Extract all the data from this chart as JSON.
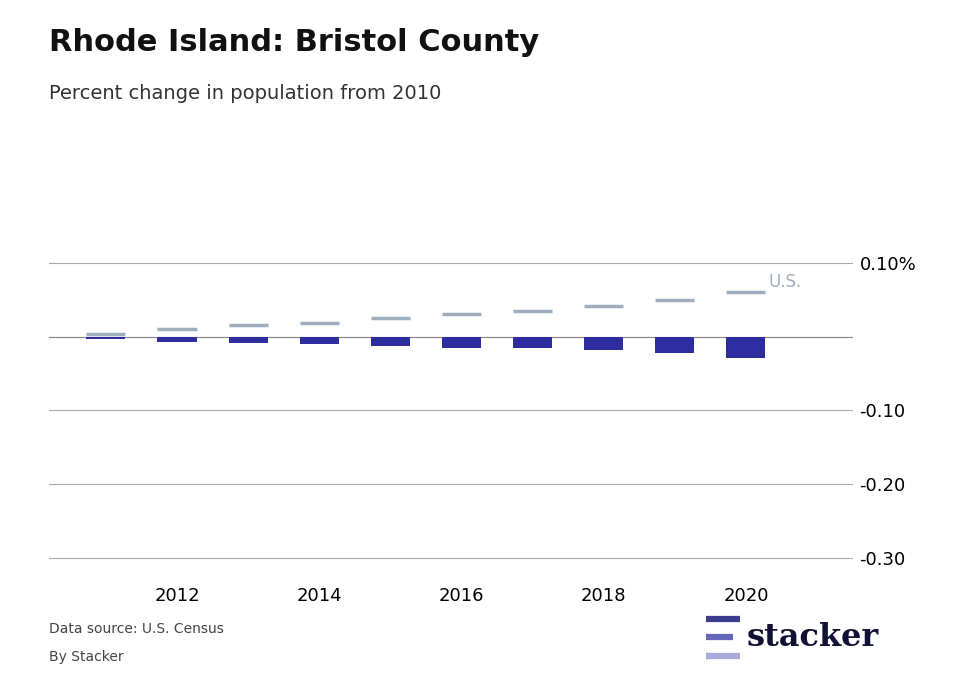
{
  "title": "Rhode Island: Bristol County",
  "subtitle": "Percent change in population from 2010",
  "bar_color": "#2d2d9f",
  "us_line_color": "#a0aec0",
  "us_label_color": "#a0aec0",
  "background_color": "#ffffff",
  "years": [
    2011,
    2012,
    2013,
    2014,
    2015,
    2016,
    2017,
    2018,
    2019,
    2020
  ],
  "county_values": [
    -0.004,
    -0.007,
    -0.009,
    -0.01,
    -0.013,
    -0.015,
    -0.016,
    -0.018,
    -0.022,
    -0.029
  ],
  "us_values": [
    0.004,
    0.01,
    0.015,
    0.019,
    0.025,
    0.03,
    0.035,
    0.042,
    0.05,
    0.06
  ],
  "ylim": [
    -0.33,
    0.115
  ],
  "yticks": [
    -0.3,
    -0.2,
    -0.1,
    0.0,
    0.1
  ],
  "ytick_labels": [
    "-0.30",
    "-0.20",
    "-0.10",
    "",
    "0.10%"
  ],
  "xticks": [
    2012,
    2014,
    2016,
    2018,
    2020
  ],
  "data_source": "Data source: U.S. Census",
  "by_line": "By Stacker",
  "stacker_logo_text": "stacker",
  "title_fontsize": 22,
  "subtitle_fontsize": 14,
  "axis_fontsize": 13,
  "annotation_fontsize": 12,
  "logo_colors": [
    "#3d3d8f",
    "#6666bb",
    "#aaaadd"
  ],
  "logo_text_color": "#111133"
}
